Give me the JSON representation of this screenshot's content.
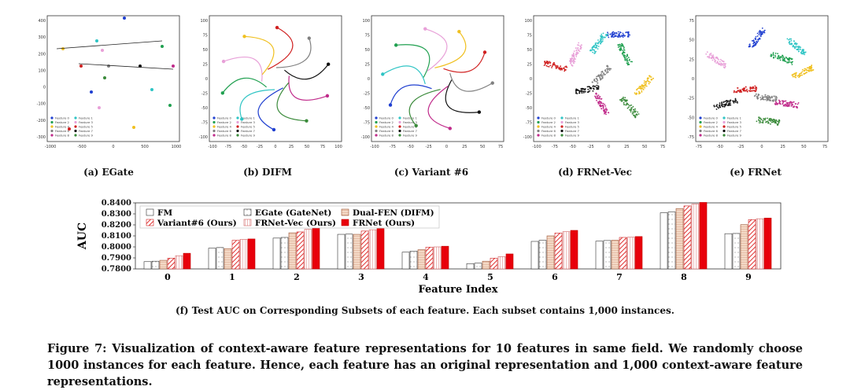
{
  "scatter_panels": [
    {
      "caption": "(a) EGate",
      "xticks": [
        "-1000",
        "-500",
        "0",
        "500",
        "1000"
      ],
      "yticks": [
        "400",
        "300",
        "200",
        "100",
        "0",
        "-100",
        "-200",
        "-300"
      ],
      "legend": [
        "Feature 0",
        "Feature 1",
        "Feature 2",
        "Feature 3",
        "Feature 4",
        "Feature 5",
        "Feature 6",
        "Feature 7",
        "Feature 8",
        "Feature 9"
      ]
    },
    {
      "caption": "(b) DIFM",
      "xticks": [
        "-100",
        "-75",
        "-50",
        "-25",
        "0",
        "25",
        "50",
        "75",
        "100"
      ],
      "yticks": [
        "100",
        "75",
        "50",
        "25",
        "0",
        "-25",
        "-50",
        "-75",
        "-100"
      ],
      "legend": [
        "Feature 0",
        "Feature 1",
        "Feature 2",
        "Feature 3",
        "Feature 4",
        "Feature 5",
        "Feature 6",
        "Feature 7",
        "Feature 8",
        "Feature 9"
      ]
    },
    {
      "caption": "(c) Variant #6",
      "xticks": [
        "-100",
        "-75",
        "-50",
        "-25",
        "0",
        "25",
        "50",
        "75"
      ],
      "yticks": [
        "100",
        "75",
        "50",
        "25",
        "0",
        "-25",
        "-50",
        "-75",
        "-100"
      ],
      "legend": [
        "Feature 0",
        "Feature 1",
        "Feature 2",
        "Feature 3",
        "Feature 4",
        "Feature 5",
        "Feature 6",
        "Feature 7",
        "Feature 8",
        "Feature 9"
      ]
    },
    {
      "caption": "(d) FRNet-Vec",
      "xticks": [
        "-100",
        "-75",
        "-50",
        "-25",
        "0",
        "25",
        "50",
        "75"
      ],
      "yticks": [
        "100",
        "75",
        "50",
        "25",
        "0",
        "-25",
        "-50",
        "-75",
        "-100"
      ],
      "legend": [
        "Feature 0",
        "Feature 1",
        "Feature 2",
        "Feature 3",
        "Feature 4",
        "Feature 5",
        "Feature 6",
        "Feature 7",
        "Feature 8",
        "Feature 9"
      ]
    },
    {
      "caption": "(e) FRNet",
      "xticks": [
        "-75",
        "-50",
        "-25",
        "0",
        "25",
        "50",
        "75"
      ],
      "yticks": [
        "75",
        "50",
        "25",
        "0",
        "-25",
        "-50",
        "-75"
      ],
      "legend": [
        "Feature 0",
        "Feature 1",
        "Feature 2",
        "Feature 3",
        "Feature 4",
        "Feature 5",
        "Feature 6",
        "Feature 7",
        "Feature 8",
        "Feature 9"
      ]
    }
  ],
  "feature_colors": [
    "#1f3fd0",
    "#2ec4c4",
    "#20a050",
    "#e8a0d8",
    "#f0c020",
    "#d02020",
    "#808080",
    "#111111",
    "#c02a8a",
    "#3a8a3a"
  ],
  "chart_data": {
    "type": "bar",
    "title": "",
    "xlabel": "Feature Index",
    "ylabel": "AUC",
    "categories": [
      "0",
      "1",
      "2",
      "3",
      "4",
      "5",
      "6",
      "7",
      "8",
      "9"
    ],
    "ylim": [
      0.78,
      0.84
    ],
    "yticks": [
      "0.8400",
      "0.8300",
      "0.8200",
      "0.8100",
      "0.8000",
      "0.7900",
      "0.7800"
    ],
    "series": [
      {
        "name": "FM",
        "values": [
          0.7866,
          0.7988,
          0.808,
          0.8114,
          0.7952,
          0.7848,
          0.805,
          0.8052,
          0.831,
          0.812
        ]
      },
      {
        "name": "EGate (GateNet)",
        "values": [
          0.787,
          0.7994,
          0.8086,
          0.8116,
          0.7962,
          0.7852,
          0.806,
          0.8058,
          0.8318,
          0.8122
        ]
      },
      {
        "name": "Dual-FEN (DIFM)",
        "values": [
          0.7878,
          0.7984,
          0.8128,
          0.8114,
          0.7974,
          0.787,
          0.81,
          0.806,
          0.8348,
          0.8202
        ]
      },
      {
        "name": "Variant#6 (Ours)",
        "values": [
          0.7898,
          0.806,
          0.8136,
          0.8144,
          0.7998,
          0.7898,
          0.8126,
          0.8086,
          0.8372,
          0.8248
        ]
      },
      {
        "name": "FRNet-Vec (Ours)",
        "values": [
          0.792,
          0.8068,
          0.816,
          0.8156,
          0.8,
          0.7912,
          0.8138,
          0.8088,
          0.839,
          0.8256
        ]
      },
      {
        "name": "FRNet (Ours)",
        "values": [
          0.7942,
          0.8072,
          0.817,
          0.8166,
          0.8006,
          0.7936,
          0.815,
          0.8094,
          0.8404,
          0.8262
        ]
      }
    ]
  },
  "subcaption_f": "(f) Test AUC on Corresponding Subsets of each feature. Each subset contains 1,000 instances.",
  "figure_caption": "Figure 7: Visualization of context-aware feature representations for 10 features in same field. We randomly choose 1000 instances for each feature. Hence, each feature has an original representation and 1,000 context-aware feature representations."
}
